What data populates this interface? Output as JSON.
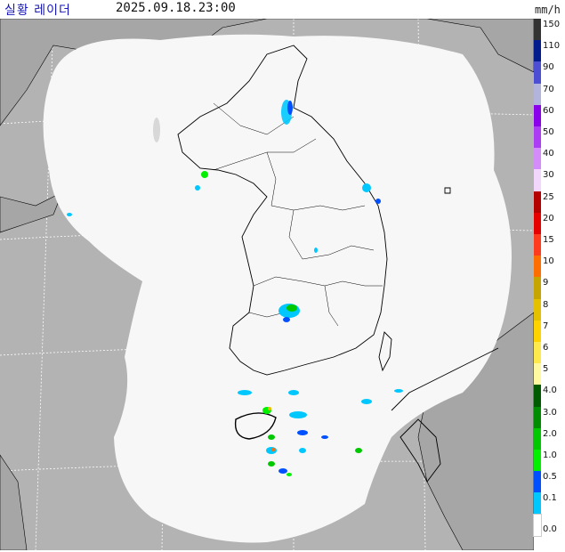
{
  "header": {
    "title": "실황 레이더",
    "timestamp": "2025.09.18.23:00",
    "unit": "mm/h"
  },
  "colors": {
    "sea": "#b3b3b3",
    "radar_coverage": "#f7f7f7",
    "coastline": "#000000",
    "title_text": "#1515b5"
  },
  "legend": [
    {
      "label": "150",
      "color": "#333333"
    },
    {
      "label": "110",
      "color": "#021c8e"
    },
    {
      "label": "90",
      "color": "#4c4ed3"
    },
    {
      "label": "70",
      "color": "#b3b4de"
    },
    {
      "label": "60",
      "color": "#8a00ea"
    },
    {
      "label": "50",
      "color": "#ad3cf5"
    },
    {
      "label": "40",
      "color": "#d58cfb"
    },
    {
      "label": "30",
      "color": "#f2d6fc"
    },
    {
      "label": "25",
      "color": "#b50000"
    },
    {
      "label": "20",
      "color": "#e60000"
    },
    {
      "label": "15",
      "color": "#ff3c1e"
    },
    {
      "label": "10",
      "color": "#ff6e00"
    },
    {
      "label": "9",
      "color": "#c7a500"
    },
    {
      "label": "8",
      "color": "#e5c000"
    },
    {
      "label": "7",
      "color": "#ffd300"
    },
    {
      "label": "6",
      "color": "#ffea4e"
    },
    {
      "label": "5",
      "color": "#fff9a0"
    },
    {
      "label": "4.0",
      "color": "#005a00"
    },
    {
      "label": "3.0",
      "color": "#008c00"
    },
    {
      "label": "2.0",
      "color": "#00c800"
    },
    {
      "label": "1.0",
      "color": "#00f000"
    },
    {
      "label": "0.5",
      "color": "#0050ff"
    },
    {
      "label": "0.1",
      "color": "#00c8ff"
    },
    {
      "label": "0.0",
      "color": "#ffffff"
    }
  ]
}
